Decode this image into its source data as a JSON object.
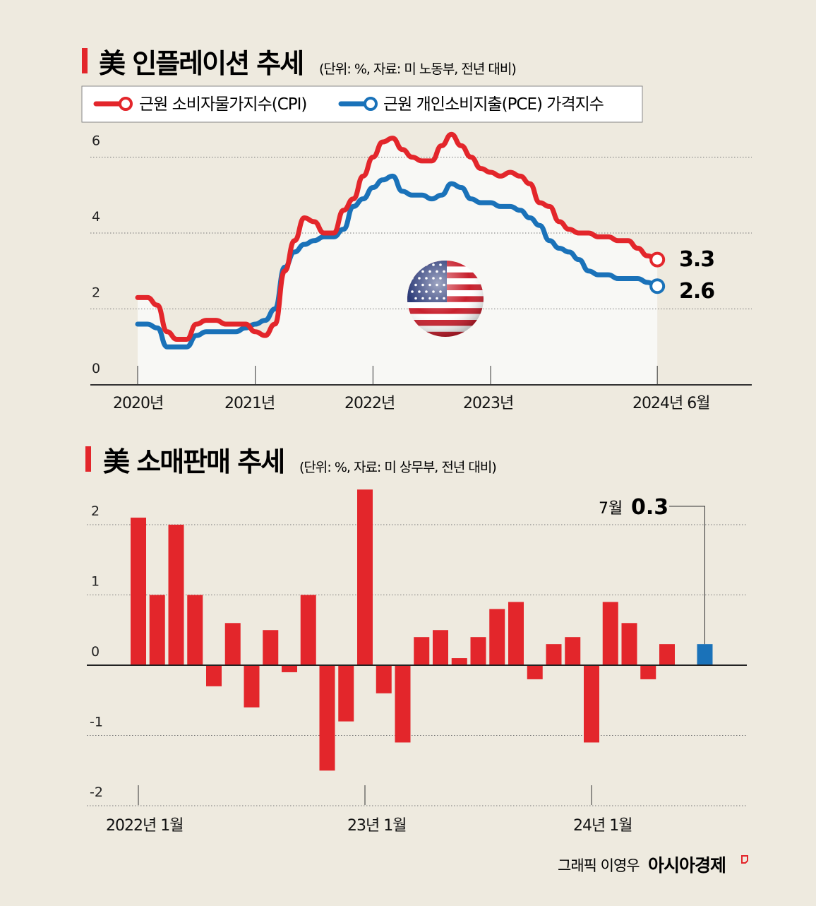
{
  "chart_data": [
    {
      "type": "line",
      "title": "美 인플레이션 추세",
      "subtitle": "(단위: %, 자료: 미 노동부, 전년 대비)",
      "x_tick_labels": [
        "2020년",
        "2021년",
        "2022년",
        "2023년",
        "2024년 6월"
      ],
      "y_tick_labels": [
        "0",
        "2",
        "4",
        "6"
      ],
      "ylim": [
        0,
        6.5
      ],
      "x_range": [
        "2020-01",
        "2024-06"
      ],
      "grid": "horizontal dotted",
      "legend_placement": "top",
      "series": [
        {
          "name": "근원 소비자물가지수(CPI)",
          "color": "#e3262b",
          "end_label": "3.3",
          "values": [
            2.3,
            2.3,
            2.1,
            1.4,
            1.2,
            1.2,
            1.6,
            1.7,
            1.7,
            1.6,
            1.6,
            1.6,
            1.4,
            1.3,
            1.6,
            3.0,
            3.8,
            4.4,
            4.3,
            4.0,
            4.0,
            4.6,
            4.9,
            5.5,
            6.0,
            6.4,
            6.5,
            6.2,
            6.0,
            5.9,
            5.9,
            6.3,
            6.6,
            6.3,
            6.0,
            5.7,
            5.6,
            5.5,
            5.6,
            5.5,
            5.3,
            4.8,
            4.7,
            4.3,
            4.1,
            4.0,
            4.0,
            3.9,
            3.9,
            3.8,
            3.8,
            3.6,
            3.4,
            3.3
          ]
        },
        {
          "name": "근원 개인소비지출(PCE) 가격지수",
          "color": "#1a72b9",
          "end_label": "2.6",
          "values": [
            1.6,
            1.6,
            1.5,
            1.0,
            1.0,
            1.0,
            1.3,
            1.4,
            1.4,
            1.4,
            1.4,
            1.5,
            1.6,
            1.7,
            2.0,
            3.1,
            3.5,
            3.7,
            3.8,
            3.9,
            3.9,
            4.1,
            4.7,
            4.9,
            5.2,
            5.4,
            5.5,
            5.1,
            5.0,
            5.0,
            4.9,
            5.0,
            5.3,
            5.2,
            4.9,
            4.8,
            4.8,
            4.7,
            4.7,
            4.6,
            4.4,
            4.2,
            3.8,
            3.6,
            3.5,
            3.3,
            3.0,
            2.9,
            2.9,
            2.8,
            2.8,
            2.8,
            2.7,
            2.6
          ]
        }
      ]
    },
    {
      "type": "bar",
      "title": "美 소매판매 추세",
      "subtitle": "(단위: %, 자료: 미 상무부, 전년 대비)",
      "x_tick_labels": [
        "2022년 1월",
        "23년 1월",
        "24년 1월"
      ],
      "y_tick_labels": [
        "2",
        "1",
        "0",
        "-1",
        "-2"
      ],
      "ylim": [
        -2,
        2.5
      ],
      "x_range": [
        "2022-01",
        "2024-07"
      ],
      "grid": "horizontal dotted",
      "bar_color": "#e3262b",
      "highlight_color": "#1a72b9",
      "annotation": {
        "month_label": "7월",
        "value_label": "0.3"
      },
      "values": [
        2.1,
        1.0,
        2.0,
        1.0,
        -0.3,
        0.6,
        -0.6,
        0.5,
        -0.1,
        1.0,
        -1.5,
        -0.8,
        2.5,
        -0.4,
        -1.1,
        0.4,
        0.5,
        0.1,
        0.4,
        0.8,
        0.9,
        -0.2,
        0.3,
        0.4,
        -1.1,
        0.9,
        0.6,
        -0.2,
        0.3,
        0.0,
        0.3
      ]
    }
  ],
  "credit": {
    "graphic": "그래픽 이영우",
    "brand": "아시아경제"
  }
}
